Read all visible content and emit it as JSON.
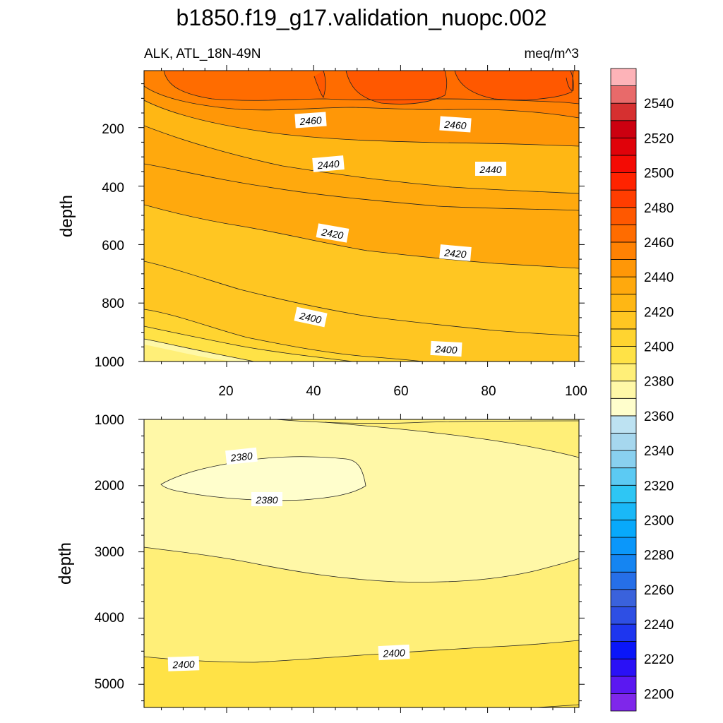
{
  "chart_data": {
    "type": "contour",
    "title": "b1850.f19_g17.validation_nuopc.002",
    "left_subtitle": "ALK, ATL_18N-49N",
    "right_subtitle": "meq/m^3",
    "ylabel": "depth",
    "panels": [
      {
        "name": "upper",
        "xlim": [
          1,
          101
        ],
        "ylim": [
          1000,
          5
        ],
        "y_reversed": true,
        "xticks": [
          "20",
          "40",
          "60",
          "80",
          "100"
        ],
        "yticks": [
          "200",
          "400",
          "600",
          "800",
          "1000"
        ],
        "contour_labels": [
          "2460",
          "2460",
          "2440",
          "2440",
          "2420",
          "2420",
          "2400",
          "2400"
        ]
      },
      {
        "name": "lower",
        "xlim": [
          1,
          101
        ],
        "ylim": [
          5350,
          1000
        ],
        "y_reversed": true,
        "xticks": [],
        "yticks": [
          "1000",
          "2000",
          "3000",
          "4000",
          "5000"
        ],
        "contour_labels": [
          "2380",
          "2380",
          "2400",
          "2400"
        ]
      }
    ],
    "colorbar": {
      "min": 2190,
      "max": 2560,
      "step": 10,
      "tick_labels": [
        "2200",
        "2220",
        "2240",
        "2260",
        "2280",
        "2300",
        "2320",
        "2340",
        "2360",
        "2380",
        "2400",
        "2420",
        "2440",
        "2460",
        "2480",
        "2500",
        "2520",
        "2540"
      ],
      "colors": [
        "#7f27ea",
        "#5b18f1",
        "#2a11f6",
        "#0a16f9",
        "#1e36ef",
        "#2e4fe4",
        "#3a62dc",
        "#266fe8",
        "#1585f2",
        "#0b97fa",
        "#08a9fb",
        "#1ab8f7",
        "#2ec6f4",
        "#5ccaf3",
        "#89d0ef",
        "#a6d7ee",
        "#bde2f2",
        "#fffecc",
        "#fff8a7",
        "#ffef78",
        "#ffe246",
        "#ffd430",
        "#ffc622",
        "#ffb714",
        "#ffa90d",
        "#ff9707",
        "#ff8203",
        "#ff6c00",
        "#ff5800",
        "#ff3d00",
        "#ff2300",
        "#f40b04",
        "#e0020a",
        "#cc0010",
        "#d63030",
        "#e86a6a",
        "#fdb3b8"
      ]
    }
  }
}
